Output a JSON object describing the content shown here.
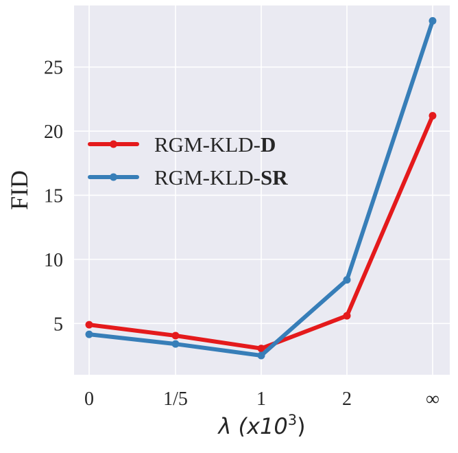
{
  "chart_data": {
    "type": "line",
    "categories": [
      "0",
      "1/5",
      "1",
      "2",
      "∞"
    ],
    "ylabel": "FID",
    "xlabel": {
      "lambda": "λ",
      "open": " (x10",
      "sup": "3",
      "close": ")"
    },
    "yticks": [
      5,
      10,
      15,
      20,
      25
    ],
    "ylim": [
      1.0,
      29.8
    ],
    "grid": true,
    "legend_position": "upper-left",
    "series": [
      {
        "name": "RGM-KLD-D",
        "name_prefix": "RGM-KLD-",
        "name_suffix": "D",
        "color": "#e41a1c",
        "values": [
          4.9,
          4.05,
          3.05,
          5.6,
          21.2
        ]
      },
      {
        "name": "RGM-KLD-SR",
        "name_prefix": "RGM-KLD-",
        "name_suffix": "SR",
        "color": "#377eb8",
        "values": [
          4.15,
          3.4,
          2.5,
          8.4,
          28.6
        ]
      }
    ],
    "background_color": "#eaeaf2",
    "grid_color": "#ffffff"
  }
}
